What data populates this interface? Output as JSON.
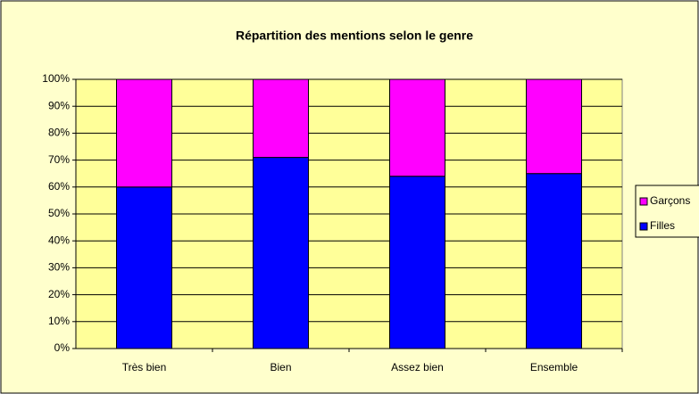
{
  "chart_data": {
    "type": "stacked_bar",
    "title": "Répartition des mentions selon le genre",
    "categories": [
      "Très bien",
      "Bien",
      "Assez bien",
      "Ensemble"
    ],
    "series": [
      {
        "name": "Filles",
        "color": "#0000ff",
        "values": [
          60,
          71,
          64,
          65
        ]
      },
      {
        "name": "Garçons",
        "color": "#ff00ff",
        "values": [
          40,
          29,
          36,
          35
        ]
      }
    ],
    "ylim": [
      0,
      100
    ],
    "yticks": [
      {
        "value": 0,
        "label": "0%"
      },
      {
        "value": 10,
        "label": "10%"
      },
      {
        "value": 20,
        "label": "20%"
      },
      {
        "value": 30,
        "label": "30%"
      },
      {
        "value": 40,
        "label": "40%"
      },
      {
        "value": 50,
        "label": "50%"
      },
      {
        "value": 60,
        "label": "60%"
      },
      {
        "value": 70,
        "label": "70%"
      },
      {
        "value": 80,
        "label": "80%"
      },
      {
        "value": 90,
        "label": "90%"
      },
      {
        "value": 100,
        "label": "100%"
      }
    ],
    "grid": true,
    "legend": "right"
  }
}
